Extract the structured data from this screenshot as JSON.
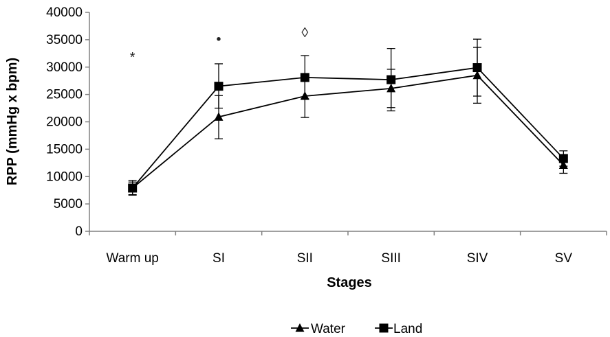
{
  "chart_data": {
    "type": "line",
    "title": "",
    "xlabel": "Stages",
    "ylabel": "RPP (mmHg x bpm)",
    "categories": [
      "Warm up",
      "SI",
      "SII",
      "SIII",
      "SIV",
      "SV"
    ],
    "ylim": [
      0,
      40000
    ],
    "yticks": [
      0,
      5000,
      10000,
      15000,
      20000,
      25000,
      30000,
      35000,
      40000
    ],
    "ytick_labels": [
      "0",
      "5000",
      "10000",
      "15000",
      "20000",
      "25000",
      "30000",
      "35000",
      "40000"
    ],
    "grid": false,
    "legend_position": "bottom-right",
    "series": [
      {
        "name": "Water",
        "marker": "triangle",
        "color": "#000000",
        "values": [
          7900,
          20900,
          24700,
          26100,
          28500,
          12100
        ],
        "error_low": [
          6600,
          16900,
          20800,
          22600,
          23400,
          10600
        ],
        "error_high": [
          9300,
          24800,
          28500,
          29600,
          33600,
          13600
        ]
      },
      {
        "name": "Land",
        "marker": "square",
        "color": "#000000",
        "values": [
          7900,
          26500,
          28100,
          27700,
          29900,
          13300
        ],
        "error_low": [
          6700,
          22500,
          24200,
          22000,
          24700,
          11900
        ],
        "error_high": [
          9000,
          30600,
          32100,
          33400,
          35100,
          14700
        ]
      }
    ],
    "annotations": [
      {
        "text": "*",
        "category": "Warm up",
        "y": 32000
      },
      {
        "text": "•",
        "category": "SI",
        "y": 35300
      },
      {
        "text": "◊",
        "category": "SII",
        "y": 36500
      }
    ]
  }
}
